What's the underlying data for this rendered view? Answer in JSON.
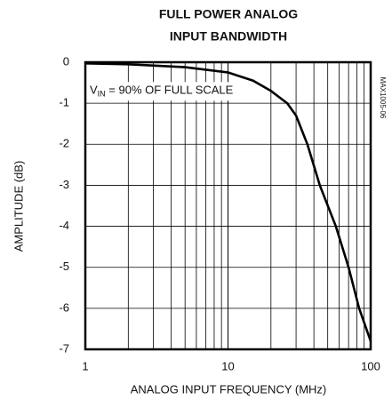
{
  "chart_data": {
    "type": "line",
    "title": [
      "FULL POWER ANALOG",
      "INPUT BANDWIDTH"
    ],
    "x_label": "ANALOG INPUT FREQUENCY (MHz)",
    "y_label": "AMPLITUDE (dB)",
    "annotation": {
      "main": "V",
      "sub": "IN",
      "rest": " = 90% OF FULL SCALE"
    },
    "side_label": "MAX1005-06",
    "x_log": true,
    "minor_grid": true,
    "grid": true,
    "xlim": [
      1,
      100
    ],
    "xticks": [
      1,
      10,
      100
    ],
    "ylim": [
      -7,
      0
    ],
    "yticks": [
      0,
      -1,
      -2,
      -3,
      -4,
      -5,
      -6,
      -7
    ],
    "series": [
      {
        "color": "#000000",
        "x": [
          1,
          2,
          5,
          10,
          15,
          20,
          26,
          30,
          36,
          44,
          57,
          70,
          83,
          100
        ],
        "values": [
          -0.03,
          -0.05,
          -0.12,
          -0.25,
          -0.45,
          -0.7,
          -1.0,
          -1.3,
          -2.0,
          -3.0,
          -4.0,
          -5.0,
          -6.0,
          -6.8
        ]
      }
    ]
  }
}
